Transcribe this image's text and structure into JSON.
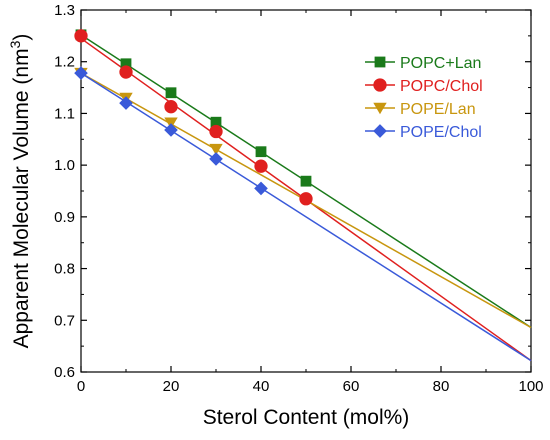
{
  "chart_data": {
    "type": "line",
    "title": "",
    "xlabel": "Sterol Content (mol%)",
    "ylabel": "Apparent Molecular Volume (nm",
    "ylabel_sup": "3",
    "ylabel_close": ")",
    "xlim": [
      0,
      100
    ],
    "ylim": [
      0.6,
      1.3
    ],
    "x_ticks": [
      0,
      20,
      40,
      60,
      80,
      100
    ],
    "x_tick_labels": [
      "0",
      "20",
      "40",
      "60",
      "80",
      "100"
    ],
    "y_ticks": [
      0.6,
      0.7,
      0.8,
      0.9,
      1.0,
      1.1,
      1.2,
      1.3
    ],
    "y_tick_labels": [
      "0.6",
      "0.7",
      "0.8",
      "0.9",
      "1.0",
      "1.1",
      "1.2",
      "1.3"
    ],
    "grid": false,
    "legend_position": "top-right",
    "series": [
      {
        "name": "POPC+Lan",
        "color": "#1a7a1a",
        "marker": "square",
        "x": [
          0,
          10,
          20,
          30,
          40,
          50
        ],
        "y": [
          1.252,
          1.196,
          1.14,
          1.083,
          1.026,
          0.969
        ],
        "fit": {
          "x": [
            0,
            100
          ],
          "y": [
            1.252,
            0.686
          ]
        }
      },
      {
        "name": "POPC/Chol",
        "color": "#e0201f",
        "marker": "circle",
        "x": [
          0,
          10,
          20,
          30,
          40,
          50
        ],
        "y": [
          1.25,
          1.18,
          1.113,
          1.065,
          0.998,
          0.935
        ],
        "fit": {
          "x": [
            0,
            100
          ],
          "y": [
            1.245,
            0.622
          ]
        }
      },
      {
        "name": "POPE/Lan",
        "color": "#c8960f",
        "marker": "triangle-down",
        "x": [
          0,
          10,
          20,
          30
        ],
        "y": [
          1.178,
          1.13,
          1.082,
          1.031
        ],
        "fit": {
          "x": [
            0,
            100
          ],
          "y": [
            1.178,
            0.686
          ]
        }
      },
      {
        "name": "POPE/Chol",
        "color": "#3a5ad9",
        "marker": "diamond",
        "x": [
          0,
          10,
          20,
          30,
          40
        ],
        "y": [
          1.178,
          1.12,
          1.068,
          1.012,
          0.955
        ],
        "fit": {
          "x": [
            0,
            100
          ],
          "y": [
            1.178,
            0.622
          ]
        }
      }
    ]
  }
}
